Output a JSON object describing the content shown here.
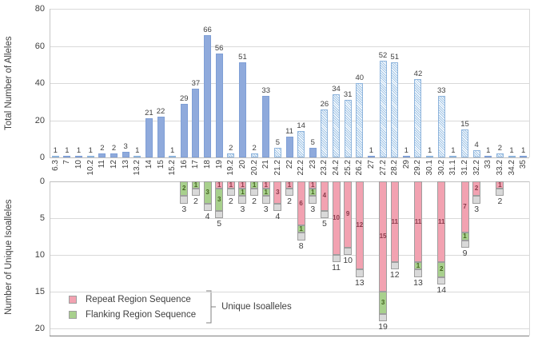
{
  "chart_data": {
    "type": "bar",
    "orientation": "dual-panel: top bars up, bottom stacked bars down",
    "categories": [
      "6.3",
      "7",
      "10",
      "10.2",
      "11",
      "12",
      "13",
      "13.2",
      "14",
      "15",
      "15.2",
      "16",
      "17",
      "18",
      "19",
      "19.2",
      "20",
      "20.2",
      "21",
      "21.2",
      "22",
      "22.2",
      "23",
      "23.2",
      "24.2",
      "25.2",
      "26.2",
      "27",
      "27.2",
      "28.2",
      "29",
      "29.2",
      "30.1",
      "30.2",
      "31.1",
      "31.2",
      "32.2",
      "33",
      "33.2",
      "34.2",
      "35"
    ],
    "top": {
      "ylabel": "Total Number of Alleles",
      "yticks": [
        0,
        20,
        40,
        60,
        80
      ],
      "ylim": [
        0,
        80
      ],
      "grid": true,
      "values": [
        1,
        1,
        1,
        1,
        2,
        2,
        3,
        1,
        21,
        22,
        1,
        29,
        37,
        66,
        56,
        2,
        51,
        2,
        33,
        5,
        11,
        14,
        5,
        26,
        34,
        31,
        40,
        1,
        52,
        51,
        1,
        42,
        1,
        33,
        1,
        15,
        4,
        1,
        2,
        1,
        1
      ],
      "hatched": [
        true,
        false,
        false,
        true,
        false,
        false,
        false,
        true,
        false,
        false,
        true,
        false,
        false,
        false,
        false,
        true,
        false,
        true,
        false,
        true,
        false,
        true,
        false,
        true,
        true,
        true,
        true,
        false,
        true,
        true,
        false,
        true,
        true,
        true,
        true,
        true,
        true,
        false,
        true,
        true,
        false
      ]
    },
    "bottom": {
      "ylabel": "Number of Unique Isoalleles",
      "yticks": [
        0,
        5,
        10,
        15,
        20
      ],
      "ylim": [
        0,
        20
      ],
      "grid": true,
      "direction": "down",
      "segment_order": [
        "repeat",
        "flanking",
        "other"
      ],
      "stacks": [
        null,
        null,
        null,
        null,
        null,
        null,
        null,
        null,
        null,
        null,
        null,
        {
          "repeat": 0,
          "flanking": 2,
          "other": 1,
          "total": 3
        },
        {
          "repeat": 0,
          "flanking": 1,
          "other": 1,
          "total": 2
        },
        {
          "repeat": 0,
          "flanking": 3,
          "other": 1,
          "total": 4
        },
        {
          "repeat": 1,
          "flanking": 3,
          "other": 1,
          "total": 5
        },
        {
          "repeat": 1,
          "flanking": 0,
          "other": 1,
          "total": 2
        },
        {
          "repeat": 1,
          "flanking": 1,
          "other": 1,
          "total": 3
        },
        {
          "repeat": 0,
          "flanking": 1,
          "other": 1,
          "total": 2
        },
        {
          "repeat": 1,
          "flanking": 1,
          "other": 1,
          "total": 3
        },
        {
          "repeat": 3,
          "flanking": 0,
          "other": 1,
          "total": 4
        },
        {
          "repeat": 1,
          "flanking": 0,
          "other": 1,
          "total": 2
        },
        {
          "repeat": 6,
          "flanking": 1,
          "other": 1,
          "total": 8
        },
        {
          "repeat": 1,
          "flanking": 1,
          "other": 1,
          "total": 3
        },
        {
          "repeat": 4,
          "flanking": 0,
          "other": 1,
          "total": 5
        },
        {
          "repeat": 10,
          "flanking": 0,
          "other": 1,
          "total": 11
        },
        {
          "repeat": 9,
          "flanking": 0,
          "other": 1,
          "total": 10
        },
        {
          "repeat": 12,
          "flanking": 0,
          "other": 1,
          "total": 13
        },
        null,
        {
          "repeat": 15,
          "flanking": 3,
          "other": 1,
          "total": 19
        },
        {
          "repeat": 11,
          "flanking": 0,
          "other": 1,
          "total": 12
        },
        null,
        {
          "repeat": 11,
          "flanking": 1,
          "other": 1,
          "total": 13
        },
        null,
        {
          "repeat": 11,
          "flanking": 2,
          "other": 1,
          "total": 14
        },
        null,
        {
          "repeat": 7,
          "flanking": 1,
          "other": 1,
          "total": 9
        },
        {
          "repeat": 2,
          "flanking": 0,
          "other": 1,
          "total": 3
        },
        null,
        {
          "repeat": 1,
          "flanking": 0,
          "other": 1,
          "total": 2
        },
        null,
        null
      ]
    },
    "legend": {
      "items": [
        {
          "label": "Repeat Region Sequence",
          "color": "#f2a2b1"
        },
        {
          "label": "Flanking Region Sequence",
          "color": "#a8d08d"
        }
      ],
      "group_label": "Unique Isoalleles"
    },
    "colors": {
      "solid_bar": "#8faadc",
      "hatched_bar_stripe": "#9dc3e6",
      "repeat": "#f2a2b1",
      "flanking": "#a8d08d",
      "other": "#d9d9d9",
      "repeat_label_text": "#8a3b4b",
      "flanking_label_text": "#44661f",
      "grid": "#d9d9d9",
      "axis": "#bfbfbf",
      "text": "#404040"
    }
  }
}
